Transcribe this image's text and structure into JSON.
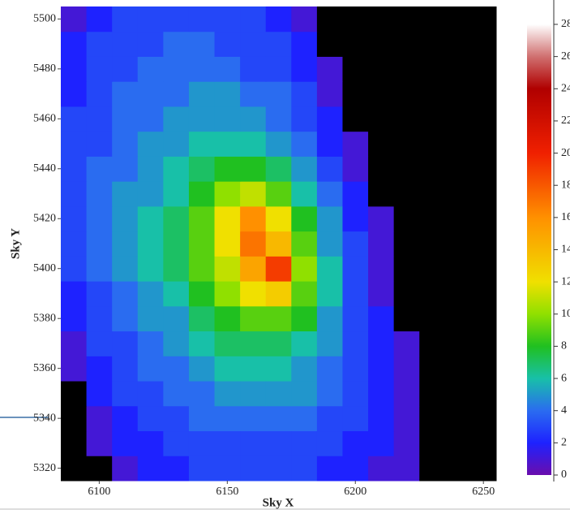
{
  "chart_data": {
    "type": "heatmap",
    "x_label": "Sky X",
    "y_label": "Sky Y",
    "xlim": [
      6085,
      6255
    ],
    "ylim": [
      5315,
      5505
    ],
    "xticks": [
      6100,
      6150,
      6200,
      6250
    ],
    "yticks": [
      5320,
      5340,
      5360,
      5380,
      5400,
      5420,
      5440,
      5460,
      5480,
      5500
    ],
    "x_edges": [
      6085,
      6095,
      6105,
      6115,
      6125,
      6135,
      6145,
      6155,
      6165,
      6175,
      6185,
      6195,
      6205,
      6215,
      6225,
      6235,
      6245,
      6255
    ],
    "y_edges": [
      5315,
      5325,
      5335,
      5345,
      5355,
      5365,
      5375,
      5385,
      5395,
      5405,
      5415,
      5425,
      5435,
      5445,
      5455,
      5465,
      5475,
      5485,
      5495,
      5505
    ],
    "z": [
      [
        0,
        0,
        1,
        2,
        2,
        3,
        3,
        3,
        3,
        3,
        2,
        2,
        1,
        1,
        0,
        0,
        0
      ],
      [
        0,
        1,
        2,
        2,
        3,
        3,
        3,
        3,
        3,
        3,
        3,
        2,
        2,
        1,
        0,
        0,
        0
      ],
      [
        0,
        1,
        2,
        3,
        3,
        4,
        4,
        4,
        4,
        4,
        3,
        3,
        2,
        1,
        0,
        0,
        0
      ],
      [
        0,
        2,
        3,
        3,
        4,
        4,
        5,
        5,
        5,
        5,
        4,
        3,
        2,
        1,
        0,
        0,
        0
      ],
      [
        1,
        2,
        3,
        4,
        4,
        5,
        6,
        6,
        6,
        5,
        4,
        3,
        2,
        1,
        0,
        0,
        0
      ],
      [
        1,
        3,
        3,
        4,
        5,
        6,
        7,
        7,
        7,
        6,
        5,
        3,
        2,
        1,
        0,
        0,
        0
      ],
      [
        2,
        3,
        4,
        5,
        5,
        7,
        8,
        9,
        9,
        8,
        5,
        3,
        2,
        0,
        0,
        0,
        0
      ],
      [
        2,
        3,
        4,
        5,
        6,
        8,
        10,
        12,
        13,
        9,
        6,
        3,
        1,
        0,
        0,
        0,
        0
      ],
      [
        3,
        4,
        5,
        6,
        7,
        9,
        11,
        15,
        19,
        10,
        6,
        3,
        1,
        0,
        0,
        0,
        0
      ],
      [
        3,
        4,
        5,
        6,
        7,
        9,
        12,
        17,
        14,
        9,
        5,
        3,
        1,
        0,
        0,
        0,
        0
      ],
      [
        3,
        4,
        5,
        6,
        7,
        9,
        12,
        16,
        12,
        8,
        5,
        2,
        1,
        0,
        0,
        0,
        0
      ],
      [
        3,
        4,
        5,
        5,
        6,
        8,
        10,
        11,
        9,
        6,
        4,
        2,
        0,
        0,
        0,
        0,
        0
      ],
      [
        3,
        4,
        4,
        5,
        6,
        7,
        8,
        8,
        7,
        5,
        3,
        1,
        0,
        0,
        0,
        0,
        0
      ],
      [
        3,
        3,
        4,
        5,
        5,
        6,
        6,
        6,
        5,
        4,
        2,
        1,
        0,
        0,
        0,
        0,
        0
      ],
      [
        3,
        3,
        4,
        4,
        5,
        5,
        5,
        5,
        4,
        3,
        2,
        0,
        0,
        0,
        0,
        0,
        0
      ],
      [
        2,
        3,
        4,
        4,
        4,
        5,
        5,
        4,
        4,
        3,
        1,
        0,
        0,
        0,
        0,
        0,
        0
      ],
      [
        2,
        3,
        3,
        4,
        4,
        4,
        4,
        3,
        3,
        2,
        1,
        0,
        0,
        0,
        0,
        0,
        0
      ],
      [
        2,
        3,
        3,
        3,
        4,
        4,
        3,
        3,
        3,
        2,
        0,
        0,
        0,
        0,
        0,
        0,
        0
      ],
      [
        1,
        2,
        3,
        3,
        3,
        3,
        3,
        3,
        2,
        1,
        0,
        0,
        0,
        0,
        0,
        0,
        0
      ]
    ],
    "zlim": [
      0,
      28
    ],
    "zticks": [
      0,
      2,
      4,
      6,
      8,
      10,
      12,
      14,
      16,
      18,
      20,
      22,
      24,
      26,
      28
    ],
    "zero_color": "#000000",
    "colorscale": [
      [
        0,
        "#6a0dad"
      ],
      [
        2,
        "#1e22ff"
      ],
      [
        4,
        "#2a6cf0"
      ],
      [
        6,
        "#18c0a8"
      ],
      [
        8,
        "#20c020"
      ],
      [
        10,
        "#90e000"
      ],
      [
        12,
        "#f0e000"
      ],
      [
        16,
        "#ff9000"
      ],
      [
        20,
        "#f02000"
      ],
      [
        24,
        "#b00000"
      ],
      [
        26,
        "#d07070"
      ],
      [
        28,
        "#ffffff"
      ]
    ]
  }
}
